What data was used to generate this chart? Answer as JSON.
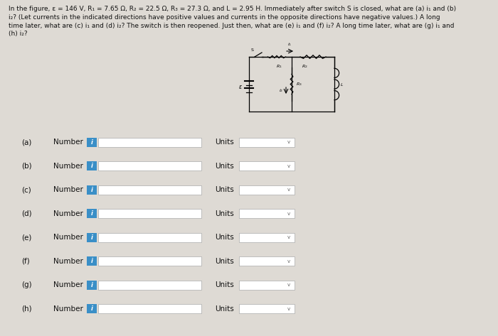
{
  "bg_color": "#dedad4",
  "title_text": "In the figure, ε = 146 V, R₁ = 7.65 Ω, R₂ = 22.5 Ω, R₃ = 27.3 Ω, and L = 2.95 H. Immediately after switch S is closed, what are (a) i₁ and (b)\ni₂? (Let currents in the indicated directions have positive values and currents in the opposite directions have negative values.) A long\ntime later, what are (c) i₁ and (d) i₂? The switch is then reopened. Just then, what are (e) i₁ and (f) i₂? A long time later, what are (g) i₁ and\n(h) i₂?",
  "rows": [
    {
      "label": "(a)"
    },
    {
      "label": "(b)"
    },
    {
      "label": "(c)"
    },
    {
      "label": "(d)"
    },
    {
      "label": "(e)"
    },
    {
      "label": "(f)"
    },
    {
      "label": "(g)"
    },
    {
      "label": "(h)"
    }
  ],
  "input_box_color": "#ffffff",
  "button_color": "#3a8fc7",
  "button_text_color": "#ffffff",
  "label_color": "#111111",
  "title_font_size": 6.5,
  "row_font_size": 7.5
}
